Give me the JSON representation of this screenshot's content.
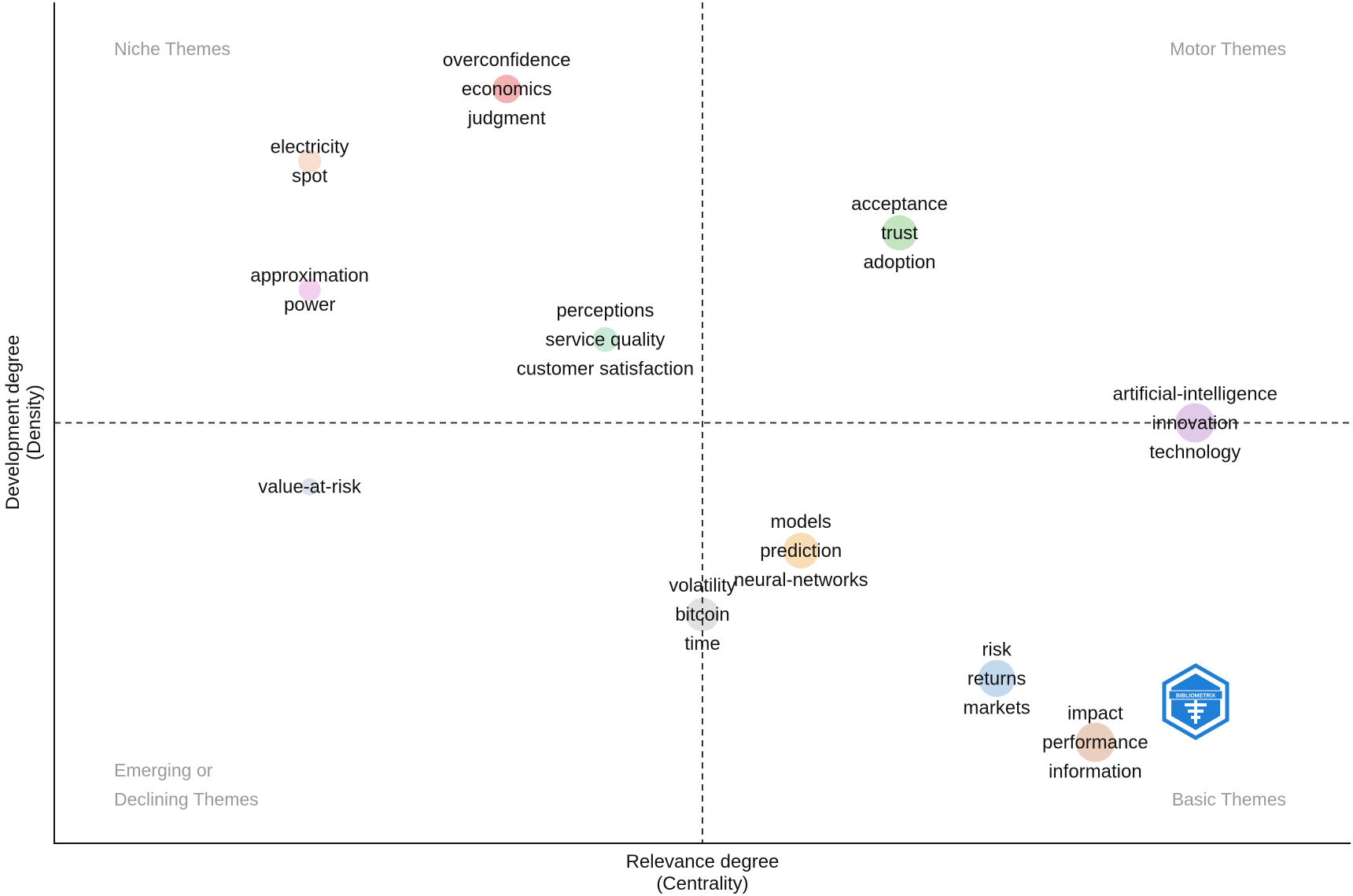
{
  "chart_data": {
    "type": "scatter",
    "subtype": "thematic-map-bubble",
    "xlabel": [
      "Relevance degree",
      "(Centrality)"
    ],
    "ylabel": [
      "Development degree",
      "(Density)"
    ],
    "xlim": [
      0,
      100
    ],
    "ylim": [
      0,
      100
    ],
    "divider_x": 50,
    "divider_y": 50,
    "grid": false,
    "quadrant_labels": {
      "top_left": [
        "Niche Themes"
      ],
      "top_right": [
        "Motor Themes"
      ],
      "bottom_left": [
        "Emerging or",
        "Declining Themes"
      ],
      "bottom_right": [
        "Basic Themes"
      ]
    },
    "series": [
      {
        "x": 34.9,
        "y": 89.7,
        "size": 3.2,
        "color": "#f2a3a3",
        "labels": [
          "overconfidence",
          "economics",
          "judgment"
        ]
      },
      {
        "x": 19.7,
        "y": 81.1,
        "size": 2.0,
        "color": "#f6d8c8",
        "labels": [
          "electricity",
          "spot"
        ]
      },
      {
        "x": 65.2,
        "y": 72.6,
        "size": 5.1,
        "color": "#b9e0b4",
        "labels": [
          "acceptance",
          "trust",
          "adoption"
        ]
      },
      {
        "x": 19.7,
        "y": 65.8,
        "size": 1.8,
        "color": "#f2c8ec",
        "labels": [
          "approximation",
          "power"
        ]
      },
      {
        "x": 42.5,
        "y": 59.9,
        "size": 2.4,
        "color": "#bfe6d2",
        "labels": [
          "perceptions",
          "service quality",
          "customer satisfaction"
        ]
      },
      {
        "x": 88.0,
        "y": 50.0,
        "size": 6.5,
        "color": "#dcc0e4",
        "labels": [
          "artificial-intelligence",
          "innovation",
          "technology"
        ]
      },
      {
        "x": 19.7,
        "y": 42.4,
        "size": 1.0,
        "color": "#d8dbe6",
        "labels": [
          "value-at-risk"
        ]
      },
      {
        "x": 57.6,
        "y": 34.8,
        "size": 5.3,
        "color": "#f8d7a8",
        "labels": [
          "models",
          "prediction",
          "neural-networks"
        ]
      },
      {
        "x": 50.0,
        "y": 27.2,
        "size": 4.6,
        "color": "#dcdcdc",
        "labels": [
          "volatility",
          "bitcoin",
          "time"
        ]
      },
      {
        "x": 72.7,
        "y": 19.6,
        "size": 5.7,
        "color": "#b9d2ea",
        "labels": [
          "risk",
          "returns",
          "markets"
        ]
      },
      {
        "x": 80.3,
        "y": 12.0,
        "size": 6.5,
        "color": "#e6c6b3",
        "labels": [
          "impact",
          "performance",
          "information"
        ]
      }
    ]
  },
  "logo": {
    "text": "BIBLIOMETRIX",
    "color": "#1f7fd6"
  }
}
